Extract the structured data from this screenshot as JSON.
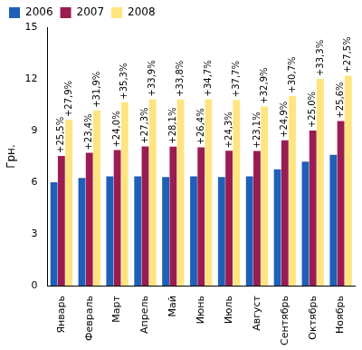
{
  "chart_data": {
    "type": "bar",
    "y_label": "Грн.",
    "categories": [
      "Январь",
      "Февраль",
      "Март",
      "Апрель",
      "Май",
      "Июнь",
      "Июль",
      "Август",
      "Сентябрь",
      "Октябрь",
      "Ноябрь"
    ],
    "series": [
      {
        "name": "2006",
        "color": "#1f5fb8",
        "values": [
          6.0,
          6.25,
          6.35,
          6.35,
          6.3,
          6.35,
          6.3,
          6.35,
          6.75,
          7.2,
          7.6
        ]
      },
      {
        "name": "2007",
        "color": "#9a1c52",
        "values": [
          7.53,
          7.71,
          7.87,
          8.08,
          8.07,
          8.03,
          7.83,
          7.82,
          8.43,
          9.0,
          9.55
        ],
        "annotations": [
          "+25,5%",
          "+23,4%",
          "+24,0%",
          "+27,3%",
          "+28,1%",
          "+26,4%",
          "+24,3%",
          "+23,1%",
          "+24,9%",
          "+25,0%",
          "+25,6%"
        ]
      },
      {
        "name": "2008",
        "color": "#ffe57f",
        "values": [
          9.63,
          10.17,
          10.65,
          10.82,
          10.8,
          10.82,
          10.78,
          10.39,
          11.02,
          12.0,
          12.18
        ],
        "annotations": [
          "+27,9%",
          "+31,9%",
          "+35,3%",
          "+33,9%",
          "+33,8%",
          "+34,7%",
          "+37,7%",
          "+32,9%",
          "+30,7%",
          "+33,3%",
          "+27,5%"
        ]
      }
    ],
    "ylim": [
      0,
      15
    ],
    "yticks": [
      0,
      3,
      6,
      9,
      12,
      15
    ],
    "grid": false,
    "legend": "top"
  }
}
